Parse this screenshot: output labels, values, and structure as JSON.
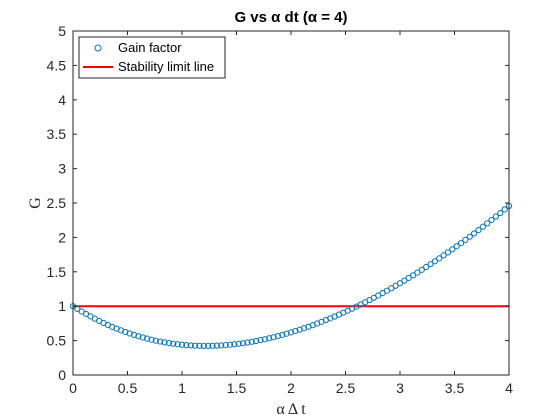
{
  "colors": {
    "series_gain": "#0072BD",
    "series_limit": "#FF0000",
    "axis": "#262626",
    "background": "#FFFFFF"
  },
  "chart_data": {
    "type": "scatter",
    "title": "G vs α dt (α = 4)",
    "xlabel": "α Δ t",
    "ylabel": "G",
    "xlim": [
      0,
      4
    ],
    "ylim": [
      0,
      5
    ],
    "xticks": [
      0,
      0.5,
      1,
      1.5,
      2,
      2.5,
      3,
      3.5,
      4
    ],
    "xtick_labels": [
      "0",
      "0.5",
      "1",
      "1.5",
      "2",
      "2.5",
      "3",
      "3.5",
      "4"
    ],
    "yticks": [
      0,
      0.5,
      1,
      1.5,
      2,
      2.5,
      3,
      3.5,
      4,
      4.5,
      5
    ],
    "ytick_labels": [
      "0",
      "0.5",
      "1",
      "1.5",
      "2",
      "2.5",
      "3",
      "3.5",
      "4",
      "4.5",
      "5"
    ],
    "grid": false,
    "legend_location": "top-left",
    "series": [
      {
        "name": "Gain factor",
        "style": "open-circle-markers",
        "x": [
          0,
          0.04,
          0.08,
          0.12,
          0.16,
          0.2,
          0.24,
          0.28,
          0.32,
          0.36,
          0.4,
          0.44,
          0.48,
          0.52,
          0.56,
          0.6,
          0.64,
          0.68,
          0.72,
          0.76,
          0.8,
          0.84,
          0.88,
          0.92,
          0.96,
          1,
          1.04,
          1.08,
          1.12,
          1.16,
          1.2,
          1.24,
          1.28,
          1.32,
          1.36,
          1.4,
          1.44,
          1.48,
          1.52,
          1.56,
          1.6,
          1.64,
          1.68,
          1.72,
          1.76,
          1.8,
          1.84,
          1.88,
          1.92,
          1.96,
          2,
          2.04,
          2.08,
          2.12,
          2.16,
          2.2,
          2.24,
          2.28,
          2.32,
          2.36,
          2.4,
          2.44,
          2.48,
          2.52,
          2.56,
          2.6,
          2.64,
          2.68,
          2.72,
          2.76,
          2.8,
          2.84,
          2.88,
          2.92,
          2.96,
          3,
          3.04,
          3.08,
          3.12,
          3.16,
          3.2,
          3.24,
          3.28,
          3.32,
          3.36,
          3.4,
          3.44,
          3.48,
          3.52,
          3.56,
          3.6,
          3.64,
          3.68,
          3.72,
          3.76,
          3.8,
          3.84,
          3.88,
          3.92,
          3.96,
          4
        ],
        "y": [
          1,
          0.9608,
          0.9231,
          0.8869,
          0.8522,
          0.8189,
          0.787,
          0.7566,
          0.7276,
          0.7,
          0.6738,
          0.649,
          0.6256,
          0.6035,
          0.5828,
          0.5634,
          0.5453,
          0.5285,
          0.513,
          0.4988,
          0.4859,
          0.4742,
          0.4637,
          0.4545,
          0.4465,
          0.4397,
          0.434,
          0.4296,
          0.4263,
          0.4242,
          0.4231,
          0.4232,
          0.4244,
          0.4267,
          0.4301,
          0.4345,
          0.44,
          0.4465,
          0.454,
          0.4625,
          0.472,
          0.4825,
          0.494,
          0.5064,
          0.5197,
          0.534,
          0.5492,
          0.5652,
          0.5822,
          0.6,
          0.6187,
          0.6382,
          0.6586,
          0.6797,
          0.7017,
          0.7245,
          0.7481,
          0.7725,
          0.7976,
          0.8235,
          0.8501,
          0.8775,
          0.9057,
          0.9345,
          0.964,
          0.9943,
          1.0252,
          1.0568,
          1.0892,
          1.1222,
          1.1558,
          1.1902,
          1.2252,
          1.2608,
          1.2972,
          1.3341,
          1.3717,
          1.41,
          1.4489,
          1.4884,
          1.5285,
          1.5693,
          1.6107,
          1.6527,
          1.6953,
          1.7385,
          1.7823,
          1.8267,
          1.8717,
          1.9174,
          1.9636,
          2.0104,
          2.0578,
          2.1058,
          2.1544,
          2.2035,
          2.2533,
          2.3036,
          2.3545,
          2.406,
          2.458
        ]
      },
      {
        "name": "Stability limit line",
        "style": "line",
        "x": [
          0,
          4
        ],
        "y": [
          1,
          1
        ]
      }
    ]
  }
}
